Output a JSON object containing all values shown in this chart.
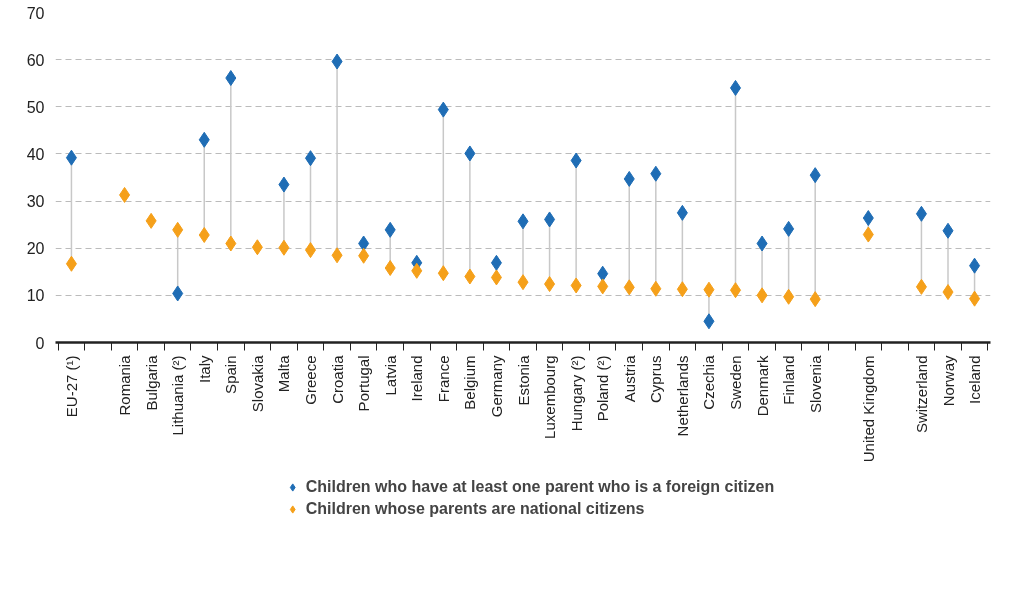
{
  "chart_data": {
    "type": "scatter",
    "categories": [
      "EU-27 (¹)",
      null,
      "Romania",
      "Bulgaria",
      "Lithuania (²)",
      "Italy",
      "Spain",
      "Slovakia",
      "Malta",
      "Greece",
      "Croatia",
      "Portugal",
      "Latvia",
      "Ireland",
      "France",
      "Belgium",
      "Germany",
      "Estonia",
      "Luxembourg",
      "Hungary (²)",
      "Poland (²)",
      "Austria",
      "Cyprus",
      "Netherlands",
      "Czechia",
      "Sweden",
      "Denmark",
      "Finland",
      "Slovenia",
      null,
      "United Kingdom",
      null,
      "Switzerland",
      "Norway",
      "Iceland"
    ],
    "series": [
      {
        "name": "Children who have at least one parent who is a foreign citizen",
        "color": "#1f6db5",
        "values": [
          39.2,
          null,
          null,
          null,
          10.4,
          43.0,
          56.1,
          null,
          33.5,
          39.1,
          59.6,
          21.0,
          23.9,
          16.9,
          49.4,
          40.1,
          16.9,
          25.7,
          26.1,
          38.6,
          14.6,
          34.7,
          35.8,
          27.5,
          4.5,
          54.0,
          21.0,
          24.1,
          35.5,
          null,
          26.4,
          null,
          27.3,
          23.7,
          16.3
        ]
      },
      {
        "name": "Children whose parents are national citizens",
        "color": "#f5a01a",
        "values": [
          16.7,
          null,
          31.3,
          25.8,
          23.9,
          22.8,
          21.0,
          20.2,
          20.1,
          19.6,
          18.5,
          18.4,
          15.8,
          15.2,
          14.7,
          14.0,
          13.8,
          12.8,
          12.4,
          12.1,
          11.9,
          11.7,
          11.4,
          11.3,
          11.2,
          11.1,
          10.0,
          9.7,
          9.2,
          null,
          22.9,
          null,
          11.8,
          10.7,
          9.3
        ]
      }
    ],
    "ylim": [
      0,
      70
    ],
    "yticks": [
      0,
      10,
      20,
      30,
      40,
      50,
      60,
      70
    ],
    "grid": "y",
    "legend": "bottom",
    "marker": "diamond"
  }
}
